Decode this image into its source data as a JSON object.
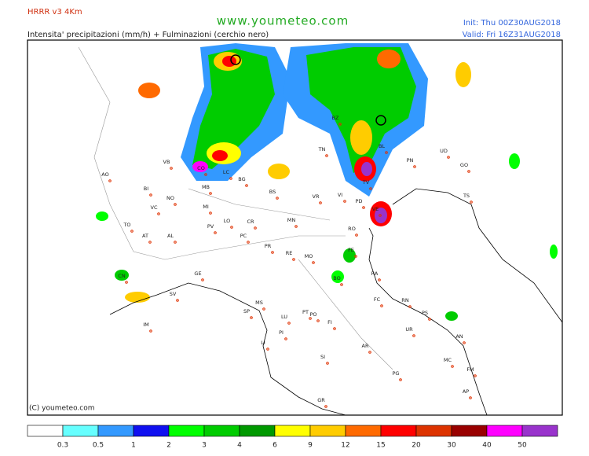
{
  "header": {
    "model": "HRRR v3 4Km",
    "subtitle": "Intensita' precipitazioni (mm/h) + Fulminazioni (cerchio nero)",
    "site": "www.youmeteo.com",
    "init": "Init: Thu 00Z30AUG2018",
    "valid": "Valid: Fri 16Z31AUG2018"
  },
  "copyright": "(C) youmeteo.com",
  "cities": [
    "AO",
    "BI",
    "VB",
    "CO",
    "LC",
    "MB",
    "BG",
    "BS",
    "NO",
    "MI",
    "VC",
    "TO",
    "AT",
    "AL",
    "PV",
    "LO",
    "CR",
    "PC",
    "CN",
    "GE",
    "SV",
    "IM",
    "SP",
    "MS",
    "PR",
    "RE",
    "MO",
    "BO",
    "FE",
    "RA",
    "FC",
    "RN",
    "PS",
    "UR",
    "AN",
    "MN",
    "VR",
    "VI",
    "TV",
    "PD",
    "VE",
    "RO",
    "TN",
    "BZ",
    "BL",
    "PN",
    "UD",
    "GO",
    "TS",
    "LU",
    "PT",
    "PO",
    "FI",
    "PI",
    "LI",
    "AR",
    "SI",
    "GR",
    "PG",
    "MC",
    "FM",
    "AP"
  ],
  "legend": {
    "colors": [
      "#ffffff",
      "#66ffff",
      "#3399ff",
      "#1010f0",
      "#00ff00",
      "#00cc00",
      "#009900",
      "#ffff00",
      "#ffcc00",
      "#ff6a00",
      "#ff0000",
      "#dd3300",
      "#990000",
      "#ff00ff",
      "#9933cc"
    ],
    "labels": [
      0.3,
      0.5,
      1,
      2,
      3,
      4,
      6,
      9,
      12,
      15,
      20,
      30,
      40,
      50
    ]
  }
}
